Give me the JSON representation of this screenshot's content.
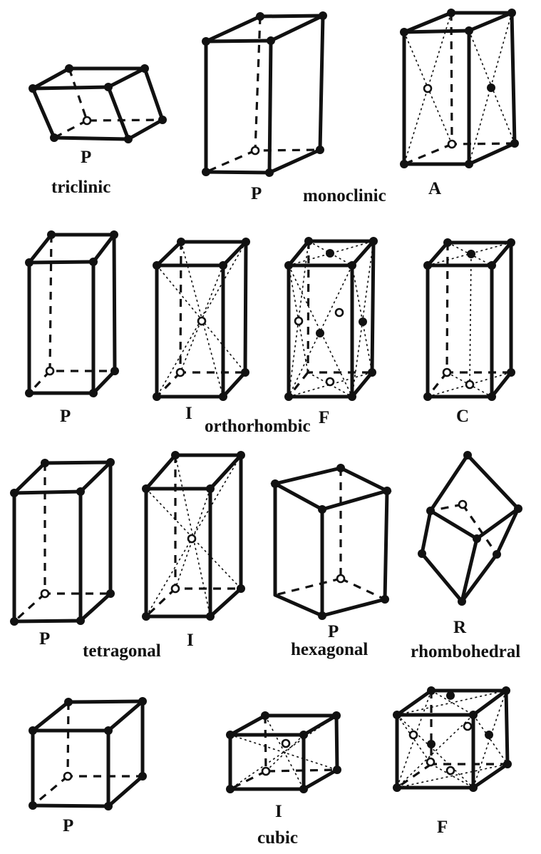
{
  "labels": {
    "triclinic_type": "P",
    "triclinic_name": "triclinic",
    "monoclinic_p_type": "P",
    "monoclinic_name": "monoclinic",
    "monoclinic_a_type": "A",
    "ortho_p_type": "P",
    "ortho_i_type": "I",
    "ortho_name": "orthorhombic",
    "ortho_f_type": "F",
    "ortho_c_type": "C",
    "tetra_p_type": "P",
    "tetra_name": "tetragonal",
    "tetra_i_type": "I",
    "hex_type": "P",
    "hex_name": "hexagonal",
    "rhombo_type": "R",
    "rhombo_name": "rhombohedral",
    "cubic_p_type": "P",
    "cubic_i_type": "I",
    "cubic_f_type": "F",
    "cubic_name": "cubic"
  }
}
